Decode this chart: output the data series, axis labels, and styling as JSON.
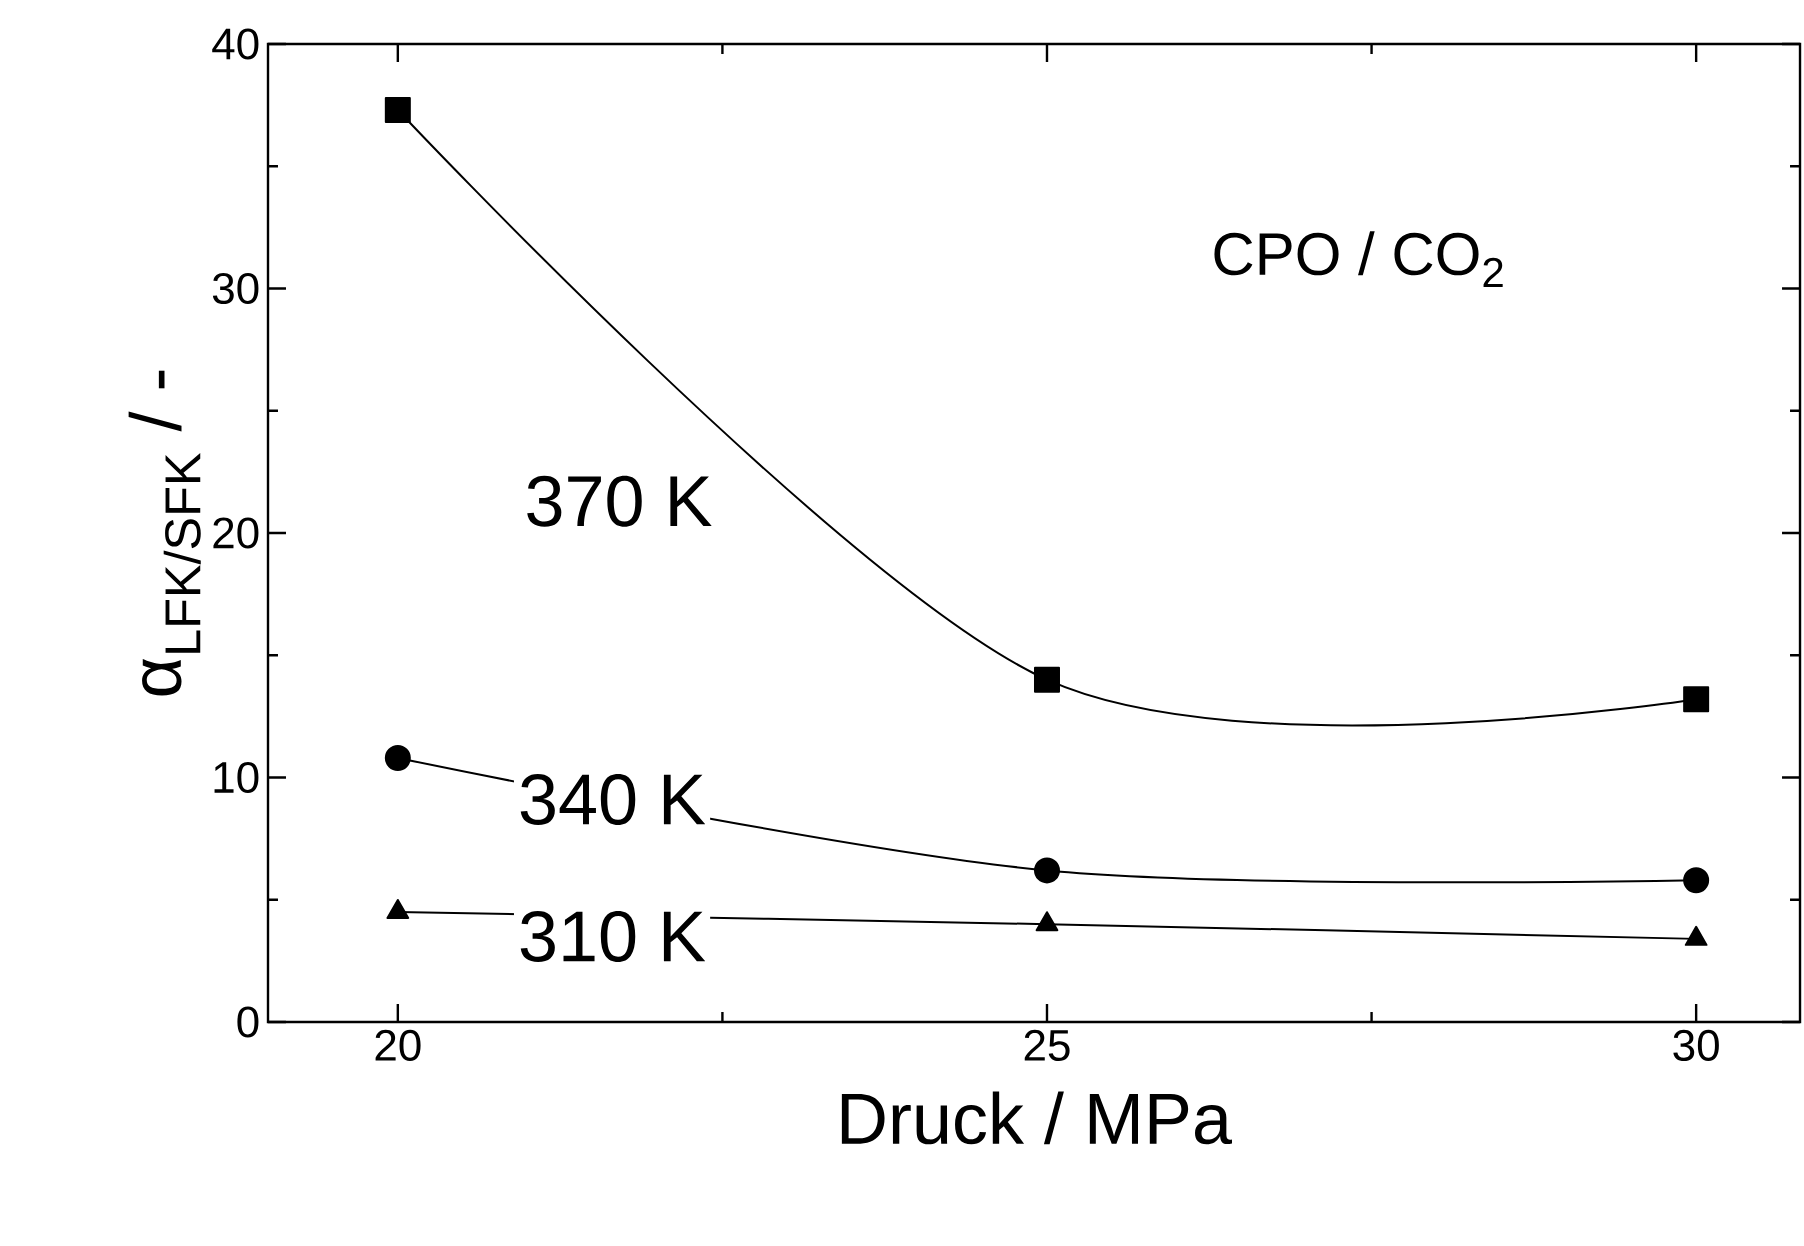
{
  "chart_data": {
    "type": "line",
    "xlabel": "Druck / MPa",
    "ylabel": "α$_{LFK/SFK}$ / -",
    "annotations": [
      "CPO / CO$_{2}$"
    ],
    "x": [
      20,
      25,
      30
    ],
    "series": [
      {
        "name": "370 K",
        "color": "#000000",
        "marker": "square",
        "values": [
          37.3,
          14.0,
          13.2
        ]
      },
      {
        "name": "340 K",
        "color": "#000000",
        "marker": "circle",
        "values": [
          10.8,
          6.2,
          5.8
        ]
      },
      {
        "name": "310 K",
        "color": "#000000",
        "marker": "triangle",
        "values": [
          4.5,
          4.0,
          3.4
        ]
      }
    ],
    "xlim": [
      19,
      30.8
    ],
    "ylim": [
      0,
      40
    ],
    "xticks": [
      20,
      25,
      30
    ],
    "yticks": [
      0,
      10,
      20,
      30,
      40
    ],
    "grid": false,
    "legend": false
  }
}
